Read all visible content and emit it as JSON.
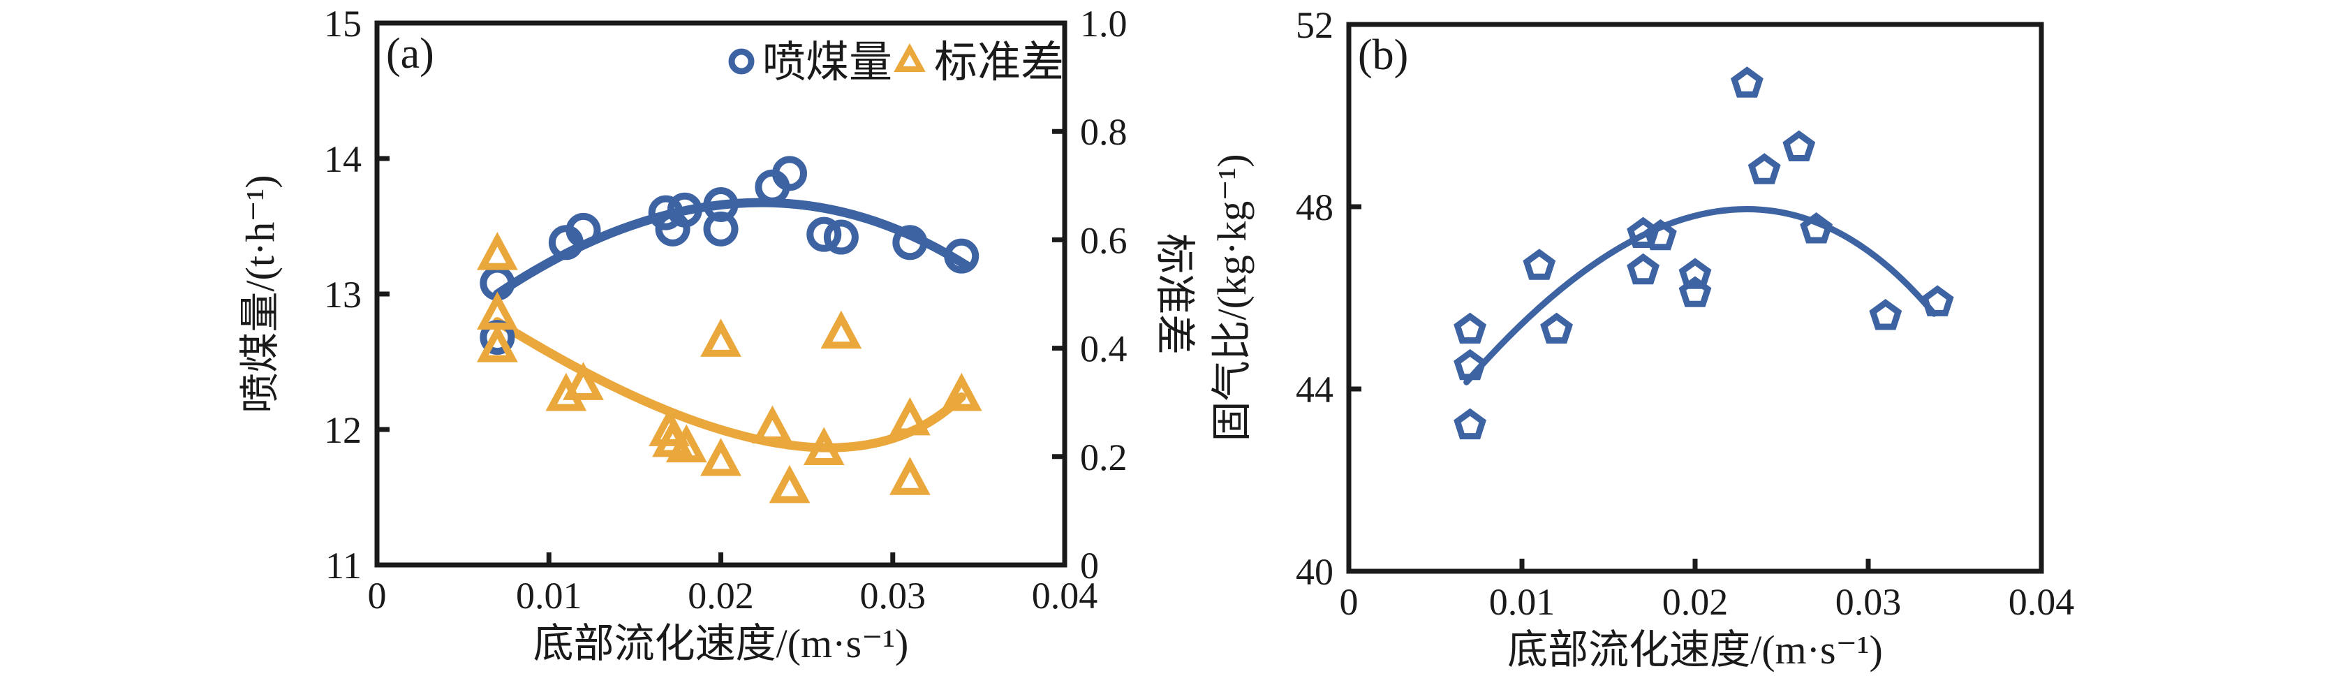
{
  "colors": {
    "blue": "#3D63A2",
    "yellow": "#EAA83C",
    "axis": "#1a1a1a",
    "background": "#ffffff"
  },
  "chart_data": [
    {
      "id": "a",
      "type": "scatter",
      "panel_label": "(a)",
      "xlabel": "底部流化速度/(m·s⁻¹)",
      "xlim": [
        0,
        0.04
      ],
      "xticks": [
        0,
        0.01,
        0.02,
        0.03,
        0.04
      ],
      "xtick_labels": [
        "0",
        "0.01",
        "0.02",
        "0.03",
        "0.04"
      ],
      "grid": false,
      "left_axis": {
        "label": "喷煤量/(t·h⁻¹)",
        "lim": [
          11,
          15
        ],
        "ticks": [
          15,
          14,
          13,
          12,
          11
        ],
        "tick_labels": [
          "15",
          "14",
          "13",
          "12",
          "11"
        ]
      },
      "right_axis": {
        "label": "标准差",
        "lim": [
          0,
          1.0
        ],
        "ticks": [
          1.0,
          0.8,
          0.6,
          0.4,
          0.2,
          0
        ],
        "tick_labels": [
          "1.0",
          "0.8",
          "0.6",
          "0.4",
          "0.2",
          "0"
        ]
      },
      "legend": {
        "position": "top-right-inside",
        "entries": [
          {
            "label": "喷煤量",
            "marker": "circle",
            "color": "blue"
          },
          {
            "label": "标准差",
            "marker": "triangle",
            "color": "yellow"
          }
        ]
      },
      "series": [
        {
          "name": "喷煤量",
          "marker": "circle",
          "color": "blue",
          "axis": "left",
          "points": [
            [
              0.007,
              13.08
            ],
            [
              0.007,
              12.68
            ],
            [
              0.011,
              13.38
            ],
            [
              0.012,
              13.47
            ],
            [
              0.0168,
              13.6
            ],
            [
              0.0172,
              13.48
            ],
            [
              0.0179,
              13.62
            ],
            [
              0.02,
              13.66
            ],
            [
              0.02,
              13.48
            ],
            [
              0.023,
              13.79
            ],
            [
              0.024,
              13.89
            ],
            [
              0.026,
              13.44
            ],
            [
              0.027,
              13.42
            ],
            [
              0.031,
              13.38
            ],
            [
              0.034,
              13.28
            ]
          ]
        },
        {
          "name": "标准差",
          "marker": "triangle",
          "color": "yellow",
          "axis": "right",
          "points": [
            [
              0.007,
              0.57
            ],
            [
              0.007,
              0.46
            ],
            [
              0.007,
              0.4
            ],
            [
              0.011,
              0.31
            ],
            [
              0.012,
              0.33
            ],
            [
              0.017,
              0.245
            ],
            [
              0.0172,
              0.225
            ],
            [
              0.018,
              0.215
            ],
            [
              0.02,
              0.41
            ],
            [
              0.02,
              0.19
            ],
            [
              0.023,
              0.25
            ],
            [
              0.024,
              0.14
            ],
            [
              0.026,
              0.21
            ],
            [
              0.027,
              0.425
            ],
            [
              0.031,
              0.265
            ],
            [
              0.031,
              0.155
            ],
            [
              0.034,
              0.31
            ]
          ]
        }
      ],
      "fit_curves": [
        {
          "series": "喷煤量",
          "axis": "left",
          "color": "blue",
          "start": [
            0.007,
            13.0
          ],
          "peak": [
            0.0211,
            13.67
          ],
          "end": [
            0.0343,
            13.21
          ]
        },
        {
          "series": "标准差",
          "axis": "right",
          "color": "yellow",
          "start": [
            0.007,
            0.449
          ],
          "peak": [
            0.0234,
            0.224
          ],
          "end": [
            0.034,
            0.31
          ]
        }
      ]
    },
    {
      "id": "b",
      "type": "scatter",
      "panel_label": "(b)",
      "xlabel": "底部流化速度/(m·s⁻¹)",
      "xlim": [
        0,
        0.04
      ],
      "xticks": [
        0,
        0.01,
        0.02,
        0.03,
        0.04
      ],
      "xtick_labels": [
        "0",
        "0.01",
        "0.02",
        "0.03",
        "0.04"
      ],
      "grid": false,
      "left_axis": {
        "label": "固气比/(kg·kg⁻¹)",
        "lim": [
          40,
          52
        ],
        "ticks": [
          52,
          48,
          44,
          40
        ],
        "tick_labels": [
          "52",
          "48",
          "44",
          "40"
        ]
      },
      "series": [
        {
          "name": "固气比",
          "marker": "pentagon",
          "color": "blue",
          "axis": "left",
          "points": [
            [
              0.007,
              45.3
            ],
            [
              0.007,
              44.5
            ],
            [
              0.007,
              43.2
            ],
            [
              0.011,
              46.7
            ],
            [
              0.012,
              45.3
            ],
            [
              0.017,
              47.4
            ],
            [
              0.018,
              47.35
            ],
            [
              0.017,
              46.6
            ],
            [
              0.02,
              46.5
            ],
            [
              0.02,
              46.1
            ],
            [
              0.023,
              50.7
            ],
            [
              0.024,
              48.8
            ],
            [
              0.026,
              49.3
            ],
            [
              0.027,
              47.5
            ],
            [
              0.031,
              45.6
            ],
            [
              0.034,
              45.9
            ]
          ]
        }
      ],
      "fit_curves": [
        {
          "series": "固气比",
          "axis": "left",
          "color": "blue",
          "start": [
            0.0068,
            44.15
          ],
          "peak": [
            0.0213,
            47.9
          ],
          "end": [
            0.0338,
            45.65
          ]
        }
      ]
    }
  ]
}
